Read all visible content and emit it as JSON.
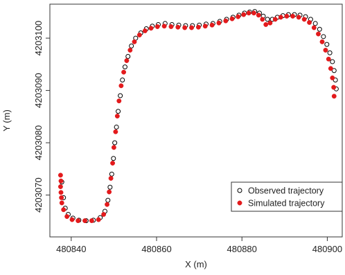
{
  "chart_data": {
    "type": "scatter",
    "title": "",
    "xlabel": "X (m)",
    "ylabel": "Y (m)",
    "xlim": [
      480835.0,
      480903.5
    ],
    "ylim": [
      4203062.0,
      4203106.5
    ],
    "xticks": [
      "480840",
      "480860",
      "480880",
      "480900"
    ],
    "xtick_values": [
      480840,
      480860,
      480880,
      480900
    ],
    "yticks": [
      "4203070",
      "4203080",
      "4203090",
      "4203100"
    ],
    "ytick_values": [
      4203070,
      4203080,
      4203090,
      4203100
    ],
    "legend_position": "bottom-right",
    "grid": false,
    "series": [
      {
        "name": "Observed trajectory",
        "marker": "open-circle",
        "color": "#000000",
        "points": [
          [
            480837.8,
            4203072.5
          ],
          [
            480838.2,
            4203069.5
          ],
          [
            480838.6,
            4203067.5
          ],
          [
            480839.3,
            4203066.3
          ],
          [
            480840.4,
            4203065.6
          ],
          [
            480841.8,
            4203065.2
          ],
          [
            480843.5,
            4203065.1
          ],
          [
            480845.2,
            4203065.2
          ],
          [
            480846.8,
            4203065.7
          ],
          [
            480847.9,
            4203066.9
          ],
          [
            480848.6,
            4203069.0
          ],
          [
            480849.1,
            4203071.5
          ],
          [
            480849.5,
            4203074.0
          ],
          [
            480849.9,
            4203077.0
          ],
          [
            480850.2,
            4203080.0
          ],
          [
            480850.6,
            4203083.0
          ],
          [
            480851.0,
            4203086.0
          ],
          [
            480851.5,
            4203089.0
          ],
          [
            480852.0,
            4203092.0
          ],
          [
            480852.6,
            4203094.5
          ],
          [
            480853.3,
            4203096.5
          ],
          [
            480854.1,
            4203098.5
          ],
          [
            480855.1,
            4203100.0
          ],
          [
            480856.3,
            4203101.0
          ],
          [
            480857.6,
            4203101.8
          ],
          [
            480859.0,
            4203102.3
          ],
          [
            480860.4,
            4203102.6
          ],
          [
            480862.0,
            4203102.8
          ],
          [
            480863.6,
            4203102.6
          ],
          [
            480865.2,
            4203102.5
          ],
          [
            480866.8,
            4203102.4
          ],
          [
            480868.4,
            4203102.4
          ],
          [
            480870.0,
            4203102.5
          ],
          [
            480871.6,
            4203102.7
          ],
          [
            480873.2,
            4203102.8
          ],
          [
            480874.8,
            4203103.2
          ],
          [
            480876.4,
            4203103.6
          ],
          [
            480877.9,
            4203104.0
          ],
          [
            480879.3,
            4203104.4
          ],
          [
            480880.6,
            4203104.8
          ],
          [
            480881.8,
            4203105.0
          ],
          [
            480883.0,
            4203105.1
          ],
          [
            480884.1,
            4203104.8
          ],
          [
            480885.0,
            4203104.2
          ],
          [
            480886.0,
            4203103.6
          ],
          [
            480887.1,
            4203103.6
          ],
          [
            480888.3,
            4203104.0
          ],
          [
            480889.6,
            4203104.3
          ],
          [
            480890.9,
            4203104.5
          ],
          [
            480892.3,
            4203104.5
          ],
          [
            480893.6,
            4203104.4
          ],
          [
            480894.9,
            4203104.1
          ],
          [
            480896.1,
            4203103.6
          ],
          [
            480897.2,
            4203102.8
          ],
          [
            480898.2,
            4203101.7
          ],
          [
            480899.1,
            4203100.3
          ],
          [
            480899.9,
            4203098.8
          ],
          [
            480900.6,
            4203097.2
          ],
          [
            480901.2,
            4203095.5
          ],
          [
            480901.6,
            4203093.8
          ],
          [
            480901.9,
            4203092.0
          ],
          [
            480902.1,
            4203090.3
          ]
        ]
      },
      {
        "name": "Simulated trajectory",
        "marker": "filled-circle",
        "color": "#e31a1c",
        "points": [
          [
            480837.5,
            4203073.8
          ],
          [
            480837.6,
            4203072.7
          ],
          [
            480837.5,
            4203071.6
          ],
          [
            480837.6,
            4203070.5
          ],
          [
            480837.7,
            4203069.5
          ],
          [
            480837.8,
            4203068.5
          ],
          [
            480838.2,
            4203067.2
          ],
          [
            480839.0,
            4203065.9
          ],
          [
            480840.2,
            4203065.3
          ],
          [
            480841.6,
            4203065.1
          ],
          [
            480843.2,
            4203065.1
          ],
          [
            480844.8,
            4203065.1
          ],
          [
            480846.4,
            4203065.3
          ],
          [
            480847.6,
            4203066.3
          ],
          [
            480848.4,
            4203068.2
          ],
          [
            480848.9,
            4203070.6
          ],
          [
            480849.3,
            4203073.2
          ],
          [
            480849.7,
            4203076.1
          ],
          [
            480850.0,
            4203079.1
          ],
          [
            480850.4,
            4203082.1
          ],
          [
            480850.8,
            4203085.1
          ],
          [
            480851.2,
            4203088.0
          ],
          [
            480851.7,
            4203090.9
          ],
          [
            480852.3,
            4203093.5
          ],
          [
            480853.0,
            4203095.7
          ],
          [
            480853.8,
            4203097.7
          ],
          [
            480854.8,
            4203099.3
          ],
          [
            480856.0,
            4203100.6
          ],
          [
            480857.3,
            4203101.4
          ],
          [
            480858.7,
            4203101.9
          ],
          [
            480860.2,
            4203102.2
          ],
          [
            480861.8,
            4203102.3
          ],
          [
            480863.4,
            4203102.2
          ],
          [
            480865.0,
            4203102.1
          ],
          [
            480866.6,
            4203102.0
          ],
          [
            480868.2,
            4203102.0
          ],
          [
            480869.8,
            4203102.1
          ],
          [
            480871.4,
            4203102.3
          ],
          [
            480873.0,
            4203102.5
          ],
          [
            480874.6,
            4203102.9
          ],
          [
            480876.2,
            4203103.3
          ],
          [
            480877.7,
            4203103.7
          ],
          [
            480879.1,
            4203104.1
          ],
          [
            480880.4,
            4203104.5
          ],
          [
            480881.6,
            4203104.8
          ],
          [
            480882.8,
            4203104.8
          ],
          [
            480883.9,
            4203104.4
          ],
          [
            480884.8,
            4203103.6
          ],
          [
            480885.6,
            4203102.6
          ],
          [
            480886.6,
            4203102.9
          ],
          [
            480887.8,
            4203103.6
          ],
          [
            480889.1,
            4203104.0
          ],
          [
            480890.5,
            4203104.2
          ],
          [
            480891.9,
            4203104.2
          ],
          [
            480893.3,
            4203104.0
          ],
          [
            480894.6,
            4203103.6
          ],
          [
            480895.8,
            4203103.0
          ],
          [
            480896.9,
            4203102.0
          ],
          [
            480897.9,
            4203100.8
          ],
          [
            480898.8,
            4203099.3
          ],
          [
            480899.6,
            4203097.7
          ],
          [
            480900.3,
            4203096.0
          ],
          [
            480900.8,
            4203094.2
          ],
          [
            480901.2,
            4203092.4
          ],
          [
            480901.5,
            4203090.6
          ],
          [
            480901.6,
            4203088.9
          ]
        ]
      }
    ]
  }
}
